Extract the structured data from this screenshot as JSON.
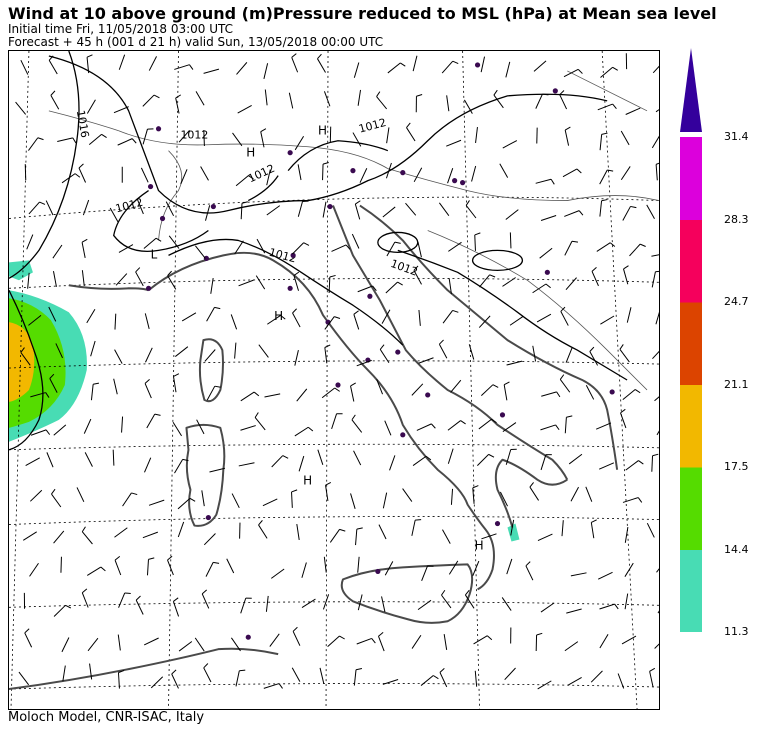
{
  "header": {
    "title": "Wind  at 10 above ground (m)Pressure reduced to MSL (hPa)  at Mean sea level",
    "initial_time": "Initial time  Fri, 11/05/2018  03:00 UTC",
    "forecast": "Forecast  +  45 h  (001 d 21 h)  valid Sun, 13/05/2018 00:00 UTC"
  },
  "footer": {
    "credit": "Moloch Model, CNR-ISAC, Italy"
  },
  "map": {
    "isobar_labels": [
      "1016",
      "1012",
      "1012",
      "1012",
      "1012",
      "1012",
      "1012"
    ],
    "pressure_centers": [
      "H",
      "H",
      "L",
      "H",
      "H",
      "H"
    ]
  },
  "colorbar": {
    "levels": [
      "11.3",
      "14.4",
      "17.5",
      "21.1",
      "24.7",
      "28.3",
      "31.4"
    ],
    "colors": [
      "#48dcb4",
      "#55dc00",
      "#f2b800",
      "#dc4400",
      "#f5005c",
      "#dc00dc",
      "#34009c"
    ]
  }
}
